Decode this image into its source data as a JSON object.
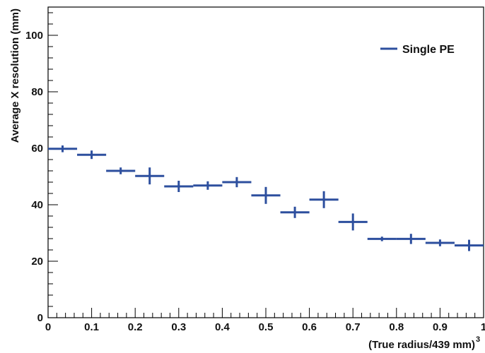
{
  "chart_data": {
    "type": "scatter",
    "title": "",
    "xlabel": "(True radius/439 mm)",
    "xlabel_superscript": "3",
    "ylabel": "Average X resolution (mm)",
    "xlim": [
      0,
      1
    ],
    "ylim": [
      0,
      110
    ],
    "x_ticks": [
      "0",
      "0.1",
      "0.2",
      "0.3",
      "0.4",
      "0.5",
      "0.6",
      "0.7",
      "0.8",
      "0.9",
      "1"
    ],
    "y_ticks": [
      "0",
      "20",
      "40",
      "60",
      "80",
      "100"
    ],
    "grid": false,
    "legend_position": "top-right",
    "color": "#2d4f9e",
    "series": [
      {
        "name": "Single PE",
        "x_width": 0.0667,
        "points": [
          {
            "x": 0.0333,
            "y": 59.8,
            "yerr": 1.2
          },
          {
            "x": 0.1,
            "y": 57.7,
            "yerr": 1.5
          },
          {
            "x": 0.1667,
            "y": 52.0,
            "yerr": 1.2
          },
          {
            "x": 0.2333,
            "y": 50.2,
            "yerr": 3.0
          },
          {
            "x": 0.3,
            "y": 46.5,
            "yerr": 2.0
          },
          {
            "x": 0.3667,
            "y": 46.8,
            "yerr": 1.5
          },
          {
            "x": 0.4333,
            "y": 48.0,
            "yerr": 1.8
          },
          {
            "x": 0.5,
            "y": 43.3,
            "yerr": 3.0
          },
          {
            "x": 0.5667,
            "y": 37.3,
            "yerr": 2.0
          },
          {
            "x": 0.6333,
            "y": 41.8,
            "yerr": 3.0
          },
          {
            "x": 0.7,
            "y": 33.9,
            "yerr": 3.0
          },
          {
            "x": 0.7667,
            "y": 27.9,
            "yerr": 0.8
          },
          {
            "x": 0.8333,
            "y": 27.9,
            "yerr": 1.8
          },
          {
            "x": 0.9,
            "y": 26.5,
            "yerr": 1.2
          },
          {
            "x": 0.9667,
            "y": 25.6,
            "yerr": 2.0
          }
        ]
      }
    ]
  }
}
